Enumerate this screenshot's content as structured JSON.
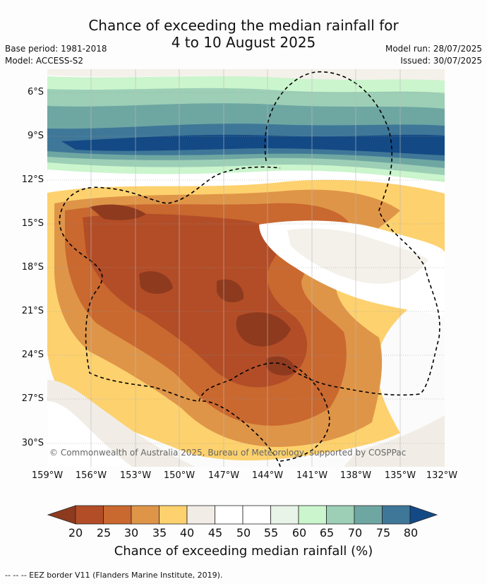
{
  "title": {
    "line1": "Chance of exceeding the median rainfall for",
    "line2": "4 to 10 August 2025"
  },
  "meta": {
    "base_period": "Base period: 1981-2018",
    "model": "Model: ACCESS-S2",
    "model_run": "Model run: 28/07/2025",
    "issued": "Issued: 30/07/2025"
  },
  "map": {
    "lat_labels": [
      "6°S",
      "9°S",
      "12°S",
      "15°S",
      "18°S",
      "21°S",
      "24°S",
      "27°S",
      "30°S"
    ],
    "lon_labels": [
      "159°W",
      "156°W",
      "153°W",
      "150°W",
      "147°W",
      "144°W",
      "141°W",
      "138°W",
      "135°W",
      "132°W"
    ],
    "copyright": "© Commonwealth of Australia 2025, Bureau of Meteorology, supported by COSPPac"
  },
  "colorbar": {
    "title": "Chance of exceeding median rainfall (%)",
    "ticks": [
      "20",
      "25",
      "30",
      "35",
      "40",
      "45",
      "50",
      "55",
      "60",
      "65",
      "70",
      "75",
      "80"
    ],
    "colors": [
      "#8e3a1e",
      "#b24d27",
      "#c9682f",
      "#df9548",
      "#fdd16e",
      "#f1ede6",
      "#ffffff",
      "#ffffff",
      "#e8f4e8",
      "#cbf5cd",
      "#9ccfb6",
      "#6ea6a2",
      "#3f7798",
      "#134a85"
    ]
  },
  "footnote": "--  --  -- EEZ border V11 (Flanders Marine Institute, 2019)."
}
